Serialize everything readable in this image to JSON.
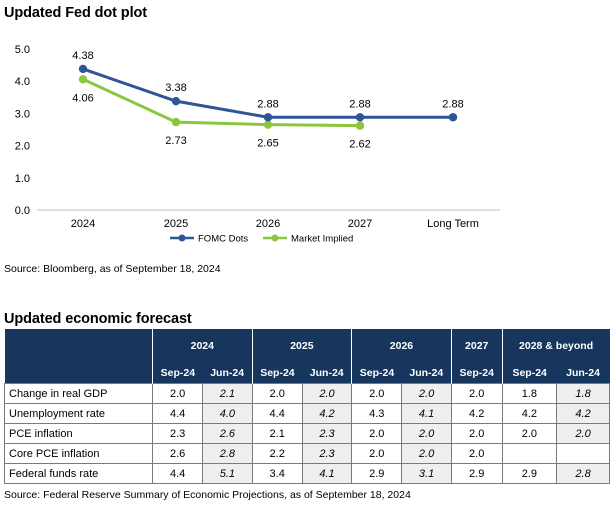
{
  "chart_title": "Updated Fed dot plot",
  "chart_source": "Source: Bloomberg, as of September 18, 2024",
  "chart_data": {
    "type": "line",
    "categories": [
      "2024",
      "2025",
      "2026",
      "2027",
      "Long Term"
    ],
    "series": [
      {
        "name": "FOMC Dots",
        "color": "#2e5597",
        "values": [
          4.38,
          3.38,
          2.88,
          2.88,
          2.88
        ],
        "labels": [
          "4.38",
          "3.38",
          "2.88",
          "2.88",
          "2.88"
        ]
      },
      {
        "name": "Market Implied",
        "color": "#8cc63f",
        "values": [
          4.06,
          2.73,
          2.65,
          2.62,
          null
        ],
        "labels": [
          "4.06",
          "2.73",
          "2.65",
          "2.62",
          null
        ]
      }
    ],
    "ylim": [
      0,
      5
    ],
    "yticks": [
      "0.0",
      "1.0",
      "2.0",
      "3.0",
      "4.0",
      "5.0"
    ],
    "legend_position": "bottom",
    "grid": false
  },
  "table_title": "Updated economic forecast",
  "table": {
    "year_headers": [
      {
        "label": "2024",
        "span": 2
      },
      {
        "label": "2025",
        "span": 2
      },
      {
        "label": "2026",
        "span": 2
      },
      {
        "label": "2027",
        "span": 1
      },
      {
        "label": "2028 & beyond",
        "span": 2
      }
    ],
    "month_headers": [
      "Sep-24",
      "Jun-24",
      "Sep-24",
      "Jun-24",
      "Sep-24",
      "Jun-24",
      "Sep-24",
      "Sep-24",
      "Jun-24"
    ],
    "rows": [
      {
        "label": "Change in real GDP",
        "values": [
          "2.0",
          "2.1",
          "2.0",
          "2.0",
          "2.0",
          "2.0",
          "2.0",
          "1.8",
          "1.8"
        ]
      },
      {
        "label": "Unemployment rate",
        "values": [
          "4.4",
          "4.0",
          "4.4",
          "4.2",
          "4.3",
          "4.1",
          "4.2",
          "4.2",
          "4.2"
        ]
      },
      {
        "label": "PCE inflation",
        "values": [
          "2.3",
          "2.6",
          "2.1",
          "2.3",
          "2.0",
          "2.0",
          "2.0",
          "2.0",
          "2.0"
        ]
      },
      {
        "label": "Core PCE inflation",
        "values": [
          "2.6",
          "2.8",
          "2.2",
          "2.3",
          "2.0",
          "2.0",
          "2.0",
          "",
          ""
        ]
      },
      {
        "label": "Federal funds rate",
        "values": [
          "4.4",
          "5.1",
          "3.4",
          "4.1",
          "2.9",
          "3.1",
          "2.9",
          "2.9",
          "2.8"
        ]
      }
    ]
  },
  "table_source": "Source: Federal Reserve Summary of Economic Projections, as of September 18, 2024"
}
